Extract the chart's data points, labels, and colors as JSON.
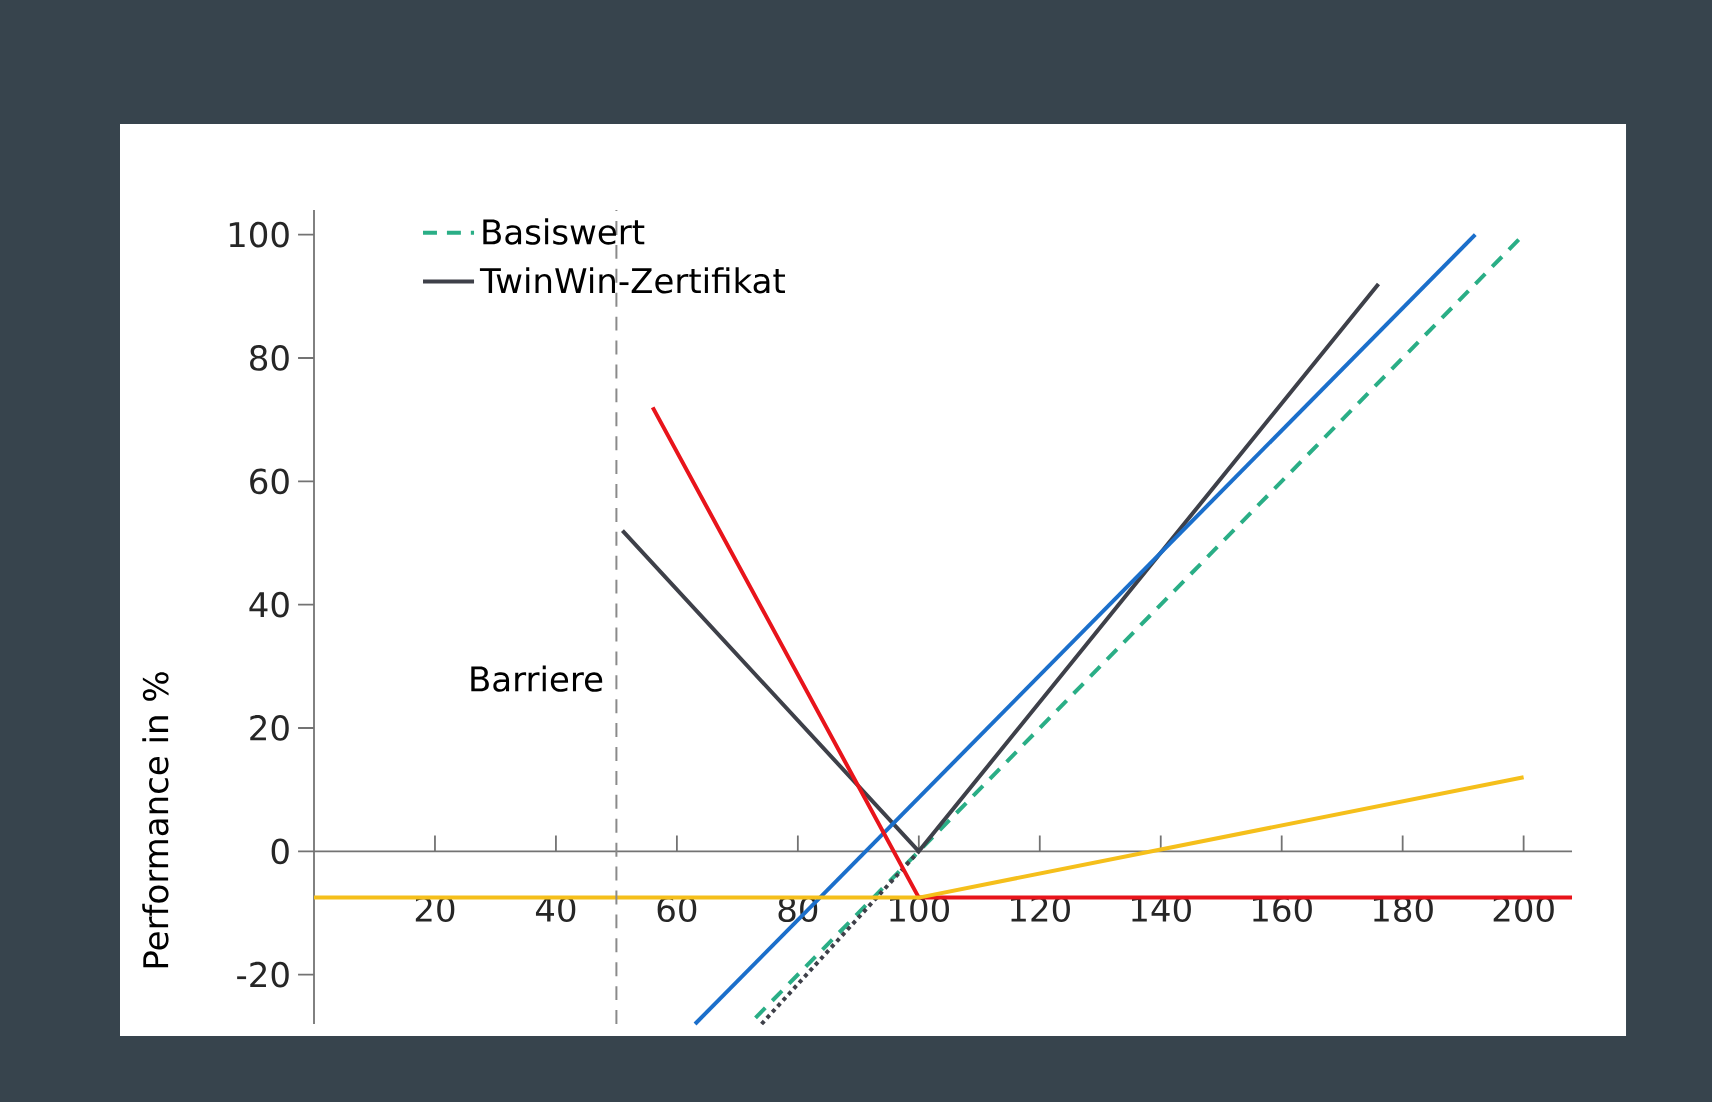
{
  "chart_data": {
    "type": "line",
    "ylabel": "Performance in %",
    "xlim": [
      0,
      208
    ],
    "ylim": [
      -28,
      104
    ],
    "xticks": [
      20,
      40,
      60,
      80,
      100,
      120,
      140,
      160,
      180,
      200
    ],
    "yticks": [
      -20,
      0,
      20,
      40,
      60,
      80,
      100
    ],
    "legend": "top left",
    "grid": false,
    "marker": "none",
    "ref_lines": [
      {
        "axis": "x",
        "value": 50,
        "label": "Barriere",
        "color": "#8a8a8a",
        "line_style": "dashed"
      }
    ],
    "series": [
      {
        "name": "Basiswert",
        "color": "#2aae86",
        "line_style": "dashed",
        "x": [
          73,
          200
        ],
        "values": [
          -27,
          100
        ]
      },
      {
        "name": "TwinWin-Zertifikat",
        "color": "#3e4049",
        "line_style": "solid",
        "x": [
          51,
          100,
          176
        ],
        "values": [
          52,
          0,
          92
        ]
      },
      {
        "color": "#3e4049",
        "line_style": "dotted",
        "x": [
          74,
          100
        ],
        "values": [
          -28,
          0
        ]
      },
      {
        "color": "#1b6fcb",
        "line_style": "solid",
        "x": [
          63,
          192
        ],
        "values": [
          -28,
          100
        ]
      },
      {
        "color": "#e8141b",
        "line_style": "solid",
        "x": [
          56,
          100,
          208
        ],
        "values": [
          72,
          -7.5,
          -7.5
        ]
      },
      {
        "color": "#f5bf1b",
        "line_style": "solid",
        "x": [
          0,
          100,
          200
        ],
        "values": [
          -7.5,
          -7.5,
          12
        ]
      }
    ]
  }
}
